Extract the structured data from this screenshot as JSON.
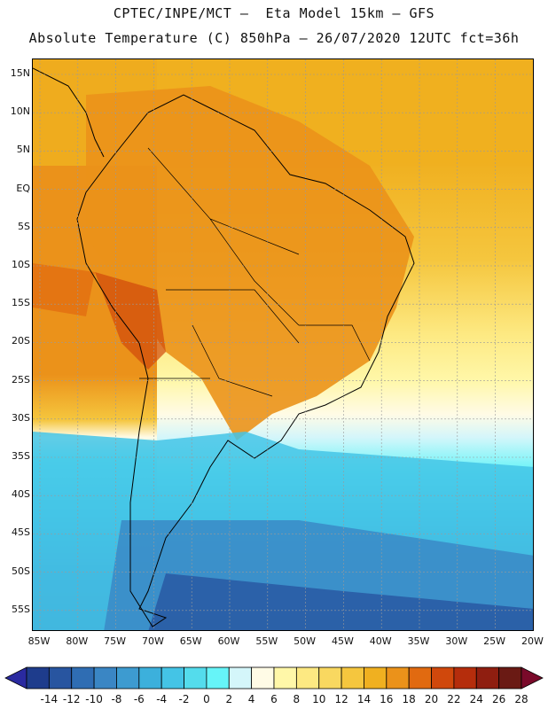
{
  "title_line1": "CPTEC/INPE/MCT –  Eta Model 15km – GFS",
  "title_line2": "Absolute Temperature (C) 850hPa – 26/07/2020 12UTC fct=36h",
  "latitude_labels": [
    "15N",
    "10N",
    "5N",
    "EQ",
    "5S",
    "10S",
    "15S",
    "20S",
    "25S",
    "30S",
    "35S",
    "40S",
    "45S",
    "50S",
    "55S"
  ],
  "longitude_labels": [
    "85W",
    "80W",
    "75W",
    "70W",
    "65W",
    "60W",
    "55W",
    "50W",
    "45W",
    "40W",
    "35W",
    "30W",
    "25W",
    "20W"
  ],
  "colorbar": {
    "labels": [
      "-14",
      "-12",
      "-10",
      "-8",
      "-6",
      "-4",
      "-2",
      "0",
      "2",
      "4",
      "6",
      "8",
      "10",
      "12",
      "14",
      "16",
      "18",
      "20",
      "22",
      "24",
      "26",
      "28"
    ],
    "colors": [
      "#1e3c8c",
      "#2855a0",
      "#2f6db3",
      "#3a86c4",
      "#3d9bd0",
      "#3cb0dc",
      "#44c4e6",
      "#54dcec",
      "#66f4f8",
      "#d4f6fa",
      "#fffbe6",
      "#fff7a8",
      "#fde982",
      "#f9d860",
      "#f5c63e",
      "#f0b020",
      "#eb921a",
      "#e16a10",
      "#d0480c",
      "#b52d0c",
      "#8f1e10",
      "#6a1a14"
    ],
    "underflow_color": "#2a2aa0",
    "overflow_color": "#7a0a2a"
  }
}
